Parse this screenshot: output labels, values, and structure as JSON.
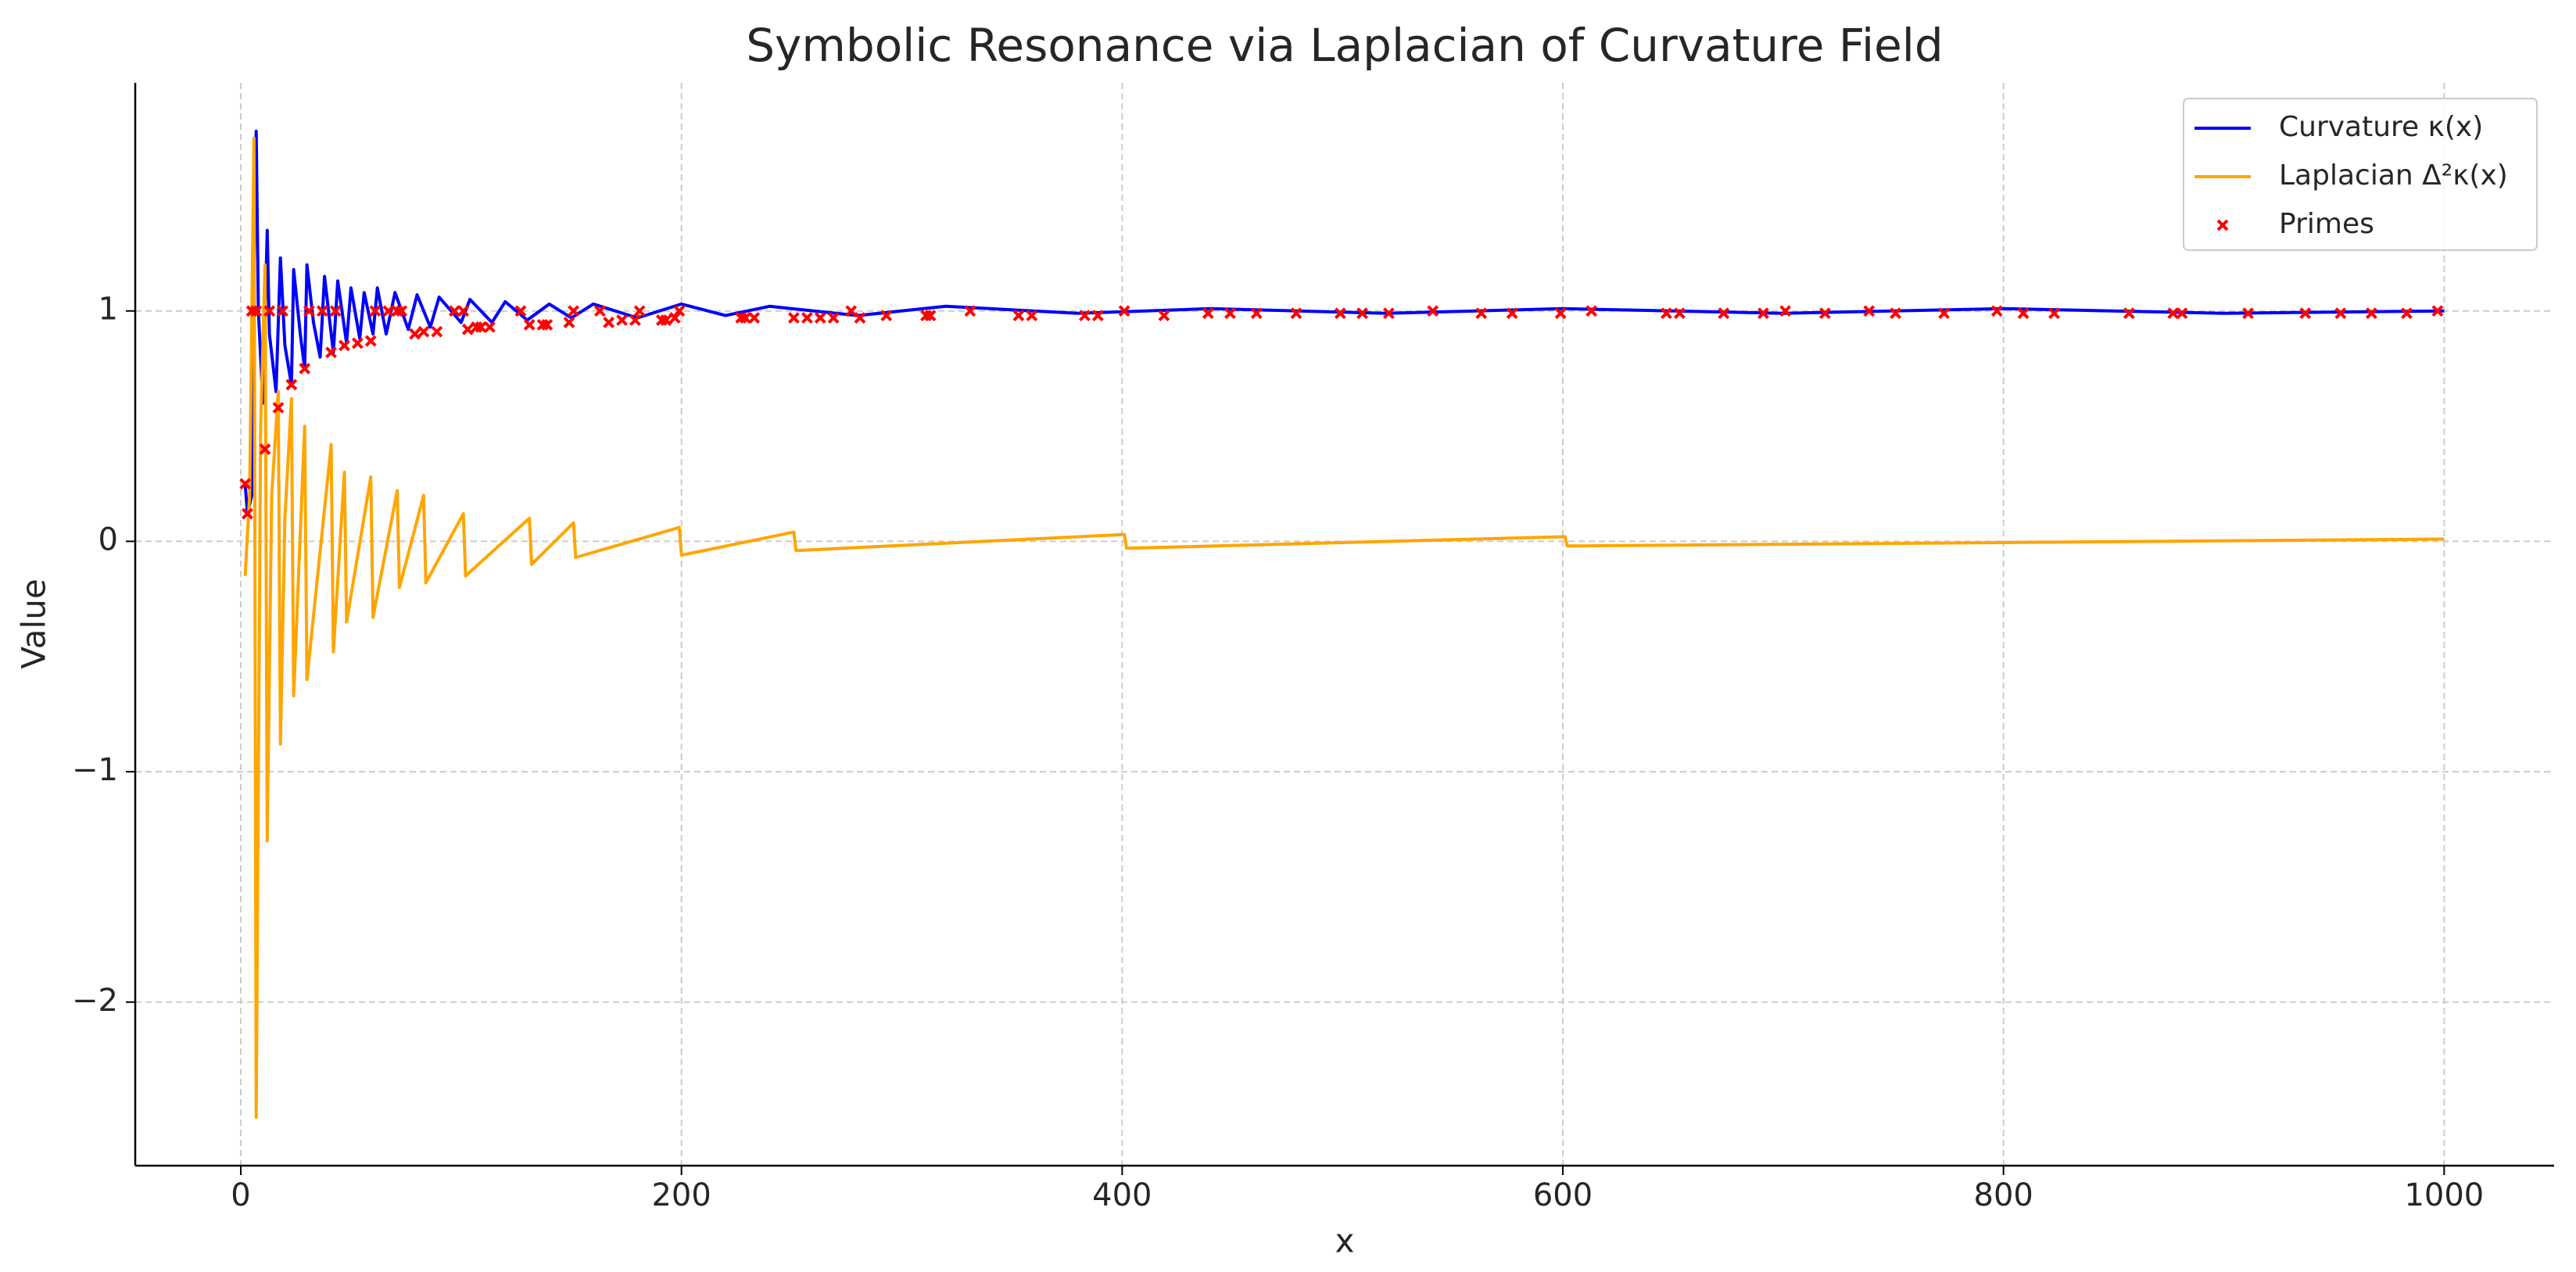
{
  "chart_data": {
    "type": "line",
    "title": "Symbolic Resonance via Laplacian of Curvature Field",
    "xlabel": "x",
    "ylabel": "Value",
    "xlim": [
      -47.9,
      1049.9
    ],
    "xticks": [
      0,
      200,
      400,
      600,
      800,
      1000
    ],
    "ylim": [
      -2.71,
      1.99
    ],
    "yticks": [
      {
        "value": -2,
        "label": "−2"
      },
      {
        "value": -1,
        "label": "−1"
      },
      0,
      1
    ],
    "grid": true,
    "legend": "upper right",
    "series": [
      {
        "name": "Curvature κ(x)",
        "color": "#0000ff",
        "kind": "line",
        "x": [
          2,
          3,
          5,
          6,
          7,
          8,
          10,
          12,
          13,
          16,
          18,
          20,
          23,
          24,
          27,
          29,
          30,
          33,
          36,
          38,
          42,
          44,
          48,
          50,
          54,
          56,
          60,
          62,
          66,
          70,
          76,
          80,
          86,
          90,
          100,
          104,
          114,
          120,
          130,
          140,
          150,
          160,
          180,
          200,
          220,
          240,
          280,
          320,
          380,
          440,
          520,
          600,
          700,
          800,
          900,
          1000
        ],
        "values": [
          0.25,
          0.12,
          0.2,
          1.2,
          1.78,
          1.0,
          0.6,
          1.35,
          0.9,
          0.65,
          1.23,
          0.85,
          0.68,
          1.18,
          0.9,
          0.75,
          1.2,
          0.95,
          0.8,
          1.15,
          0.82,
          1.13,
          0.86,
          1.1,
          0.88,
          1.08,
          0.9,
          1.1,
          0.9,
          1.08,
          0.92,
          1.07,
          0.93,
          1.06,
          0.95,
          1.05,
          0.95,
          1.04,
          0.96,
          1.03,
          0.97,
          1.03,
          0.97,
          1.03,
          0.98,
          1.02,
          0.98,
          1.02,
          0.99,
          1.01,
          0.99,
          1.01,
          0.99,
          1.01,
          0.99,
          1.0
        ]
      },
      {
        "name": "Laplacian Δ²κ(x)",
        "color": "#ffa500",
        "kind": "line",
        "x": [
          2,
          4,
          6,
          7,
          9,
          11,
          12,
          14,
          17,
          18,
          20,
          23,
          24,
          29,
          30,
          41,
          42,
          47,
          48,
          59,
          60,
          71,
          72,
          83,
          84,
          101,
          102,
          131,
          132,
          151,
          152,
          199,
          200,
          251,
          252,
          401,
          402,
          601,
          602,
          1000
        ],
        "values": [
          -0.15,
          0.2,
          1.75,
          -2.5,
          0.5,
          1.2,
          -1.3,
          0.2,
          0.65,
          -0.88,
          0.1,
          0.62,
          -0.67,
          0.5,
          -0.6,
          0.42,
          -0.48,
          0.3,
          -0.35,
          0.28,
          -0.33,
          0.22,
          -0.2,
          0.2,
          -0.18,
          0.12,
          -0.15,
          0.1,
          -0.1,
          0.08,
          -0.07,
          0.06,
          -0.06,
          0.04,
          -0.04,
          0.03,
          -0.03,
          0.02,
          -0.02,
          0.01
        ]
      },
      {
        "name": "Primes",
        "color": "#ff0000",
        "kind": "scatter",
        "x": [
          2,
          3,
          5,
          7,
          11,
          13,
          17,
          19,
          23,
          29,
          31,
          37,
          41,
          43,
          47,
          53,
          59,
          61,
          67,
          71,
          73,
          79,
          83,
          89,
          97,
          101,
          103,
          107,
          109,
          113,
          127,
          131,
          137,
          139,
          149,
          151,
          163,
          167,
          173,
          179,
          181,
          191,
          193,
          197,
          199,
          227,
          229,
          233,
          251,
          257,
          263,
          269,
          277,
          281,
          293,
          311,
          313,
          331,
          353,
          359,
          383,
          389,
          401,
          419,
          439,
          449,
          461,
          479,
          499,
          509,
          521,
          541,
          563,
          577,
          599,
          613,
          647,
          653,
          673,
          691,
          701,
          719,
          739,
          751,
          773,
          797,
          809,
          823,
          857,
          877,
          881,
          911,
          937,
          953,
          967,
          983,
          997
        ],
        "values": [
          0.25,
          0.12,
          1.0,
          1.0,
          0.4,
          1.0,
          0.58,
          1.0,
          0.68,
          0.75,
          1.0,
          1.0,
          0.82,
          1.0,
          0.85,
          0.86,
          0.87,
          1.0,
          1.0,
          1.0,
          1.0,
          0.9,
          0.91,
          0.91,
          1.0,
          1.0,
          0.92,
          0.93,
          0.93,
          0.93,
          1.0,
          0.94,
          0.94,
          0.94,
          0.95,
          1.0,
          1.0,
          0.95,
          0.96,
          0.96,
          1.0,
          0.96,
          0.96,
          0.97,
          1.0,
          0.97,
          0.97,
          0.97,
          0.97,
          0.97,
          0.97,
          0.97,
          1.0,
          0.97,
          0.98,
          0.98,
          0.98,
          1.0,
          0.98,
          0.98,
          0.98,
          0.98,
          1.0,
          0.98,
          0.99,
          0.99,
          0.99,
          0.99,
          0.99,
          0.99,
          0.99,
          1.0,
          0.99,
          0.99,
          0.99,
          1.0,
          0.99,
          0.99,
          0.99,
          0.99,
          1.0,
          0.99,
          1.0,
          0.99,
          0.99,
          1.0,
          0.99,
          0.99,
          0.99,
          0.99,
          0.99,
          0.99,
          0.99,
          0.99,
          0.99,
          0.99,
          1.0
        ]
      }
    ]
  }
}
